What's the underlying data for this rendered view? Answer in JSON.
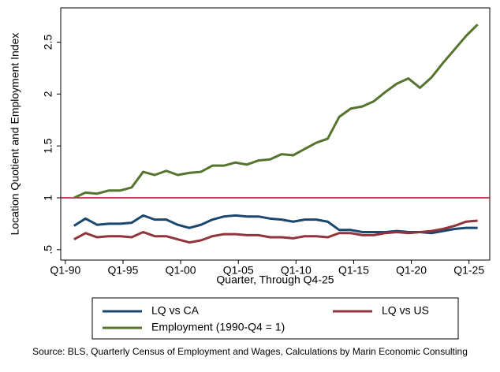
{
  "chart_data": {
    "type": "line",
    "y_label": "Location Quotient and Employment Index",
    "x_label": "Quarter, Through Q4-25",
    "source": "Source: BLS, Quarterly Census of Employment and Wages, Calculations by Marin Economic Consulting",
    "x": [
      1990.75,
      1991.75,
      1992.75,
      1993.75,
      1994.75,
      1995.75,
      1996.75,
      1997.75,
      1998.75,
      1999.75,
      2000.75,
      2001.75,
      2002.75,
      2003.75,
      2004.75,
      2005.75,
      2006.75,
      2007.75,
      2008.75,
      2009.75,
      2010.75,
      2011.75,
      2012.75,
      2013.75,
      2014.75,
      2015.75,
      2016.75,
      2017.75,
      2018.75,
      2019.75,
      2020.75,
      2021.75,
      2022.75,
      2023.75,
      2024.75,
      2025.75
    ],
    "series": [
      {
        "name": "LQ vs CA",
        "color": "#1a476f",
        "values": [
          0.73,
          0.8,
          0.74,
          0.75,
          0.75,
          0.76,
          0.83,
          0.79,
          0.79,
          0.74,
          0.71,
          0.74,
          0.79,
          0.82,
          0.83,
          0.82,
          0.82,
          0.8,
          0.79,
          0.77,
          0.79,
          0.79,
          0.77,
          0.69,
          0.69,
          0.67,
          0.67,
          0.67,
          0.68,
          0.67,
          0.67,
          0.66,
          0.68,
          0.7,
          0.71,
          0.71
        ]
      },
      {
        "name": "LQ vs US",
        "color": "#90353b",
        "values": [
          0.6,
          0.66,
          0.62,
          0.63,
          0.63,
          0.62,
          0.67,
          0.63,
          0.63,
          0.6,
          0.57,
          0.59,
          0.63,
          0.65,
          0.65,
          0.64,
          0.64,
          0.62,
          0.62,
          0.61,
          0.63,
          0.63,
          0.62,
          0.66,
          0.66,
          0.64,
          0.64,
          0.66,
          0.67,
          0.66,
          0.67,
          0.68,
          0.7,
          0.73,
          0.77,
          0.78
        ]
      },
      {
        "name": "Employment (1990-Q4 = 1)",
        "color": "#55752f",
        "values": [
          1.0,
          1.05,
          1.04,
          1.07,
          1.07,
          1.1,
          1.25,
          1.22,
          1.26,
          1.22,
          1.24,
          1.25,
          1.31,
          1.31,
          1.34,
          1.32,
          1.36,
          1.37,
          1.42,
          1.41,
          1.47,
          1.53,
          1.57,
          1.78,
          1.86,
          1.88,
          1.93,
          2.02,
          2.1,
          2.15,
          2.06,
          2.16,
          2.3,
          2.43,
          2.56,
          2.67
        ]
      }
    ],
    "xlim": [
      1989.6,
      2026.8
    ],
    "xticks": [
      {
        "value": 1990,
        "label": "Q1-90"
      },
      {
        "value": 1995,
        "label": "Q1-95"
      },
      {
        "value": 2000,
        "label": "Q1-00"
      },
      {
        "value": 2005,
        "label": "Q1-05"
      },
      {
        "value": 2010,
        "label": "Q1-10"
      },
      {
        "value": 2015,
        "label": "Q1-15"
      },
      {
        "value": 2020,
        "label": "Q1-20"
      },
      {
        "value": 2025,
        "label": "Q1-25"
      }
    ],
    "ylim": [
      0.4,
      2.83
    ],
    "yticks": [
      {
        "value": 0.5,
        "label": ".5"
      },
      1,
      {
        "value": 1.5,
        "label": "1.5"
      },
      2,
      {
        "value": 2.5,
        "label": "2.5"
      }
    ],
    "refline": {
      "value": 1,
      "color": "#c10534"
    },
    "legend": "bottom",
    "grid": false
  }
}
